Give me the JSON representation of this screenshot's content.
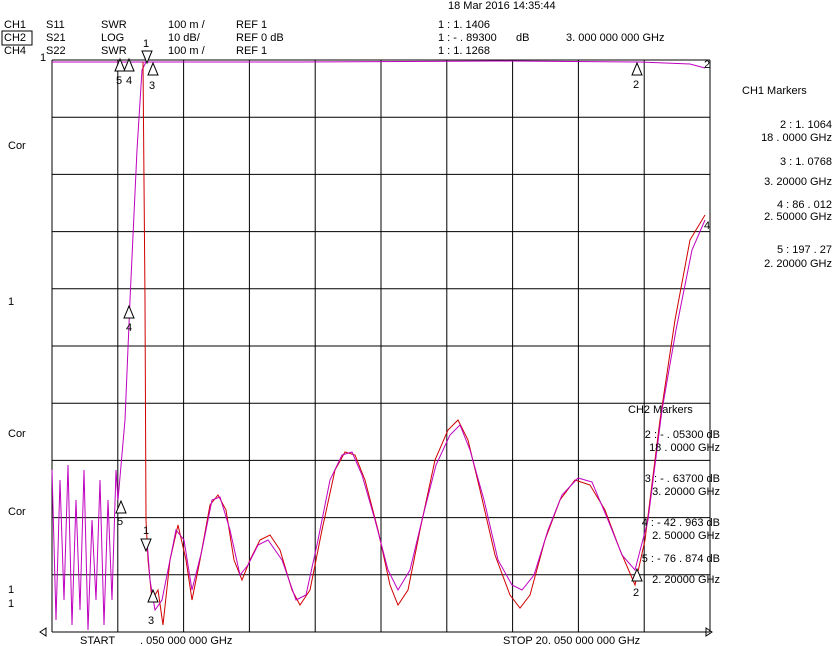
{
  "header": {
    "timestamp": "18 Mar 2016  14:35:44"
  },
  "channels": [
    {
      "ch": "CH1",
      "param": "S11",
      "format": "SWR",
      "scale": "100 m /",
      "ref": "REF 1",
      "marker": "1 : 1. 1406"
    },
    {
      "ch": "CH2",
      "param": "S21",
      "format": "LOG",
      "scale": "10 dB/",
      "ref": "REF 0 dB",
      "marker": "1 : - . 89300",
      "unit": "dB",
      "freq": "3. 000  000  000  GHz"
    },
    {
      "ch": "CH4",
      "param": "S22",
      "format": "SWR",
      "scale": "100 m /",
      "ref": "REF 1",
      "marker": "1 : 1. 1268"
    }
  ],
  "left_labels": [
    "1",
    "Cor",
    "1",
    "Cor",
    "Cor",
    "1",
    "1"
  ],
  "ch1_markers": {
    "title": "CH1   Markers",
    "entries": [
      [
        "2 : 1. 1064",
        "18 . 0000   GHz"
      ],
      [
        "3 : 1. 0768",
        "3. 20000   GHz"
      ],
      [
        "4 : 86 . 012",
        "2. 50000   GHz"
      ],
      [
        "5 : 197 . 27",
        "2. 20000   GHz"
      ]
    ]
  },
  "ch2_markers": {
    "title": "CH2   Markers",
    "entries": [
      [
        "2 : - . 05300  dB",
        "18 . 0000  GHz"
      ],
      [
        "3 : - . 63700  dB",
        "3. 20000  GHz"
      ],
      [
        "4 : - 42 . 963  dB",
        "2. 50000  GHz"
      ],
      [
        "5 : - 76 . 874  dB",
        "2. 20000  GHz"
      ]
    ]
  },
  "plot_markers": [
    "5",
    "4",
    "1",
    "3",
    "2",
    "2",
    "4",
    "4",
    "5",
    "1",
    "3",
    "2"
  ],
  "footer": {
    "start": "START",
    "start_freq": ". 050  000  000  GHz",
    "stop": "STOP  20. 050  000  000  GHz"
  }
}
